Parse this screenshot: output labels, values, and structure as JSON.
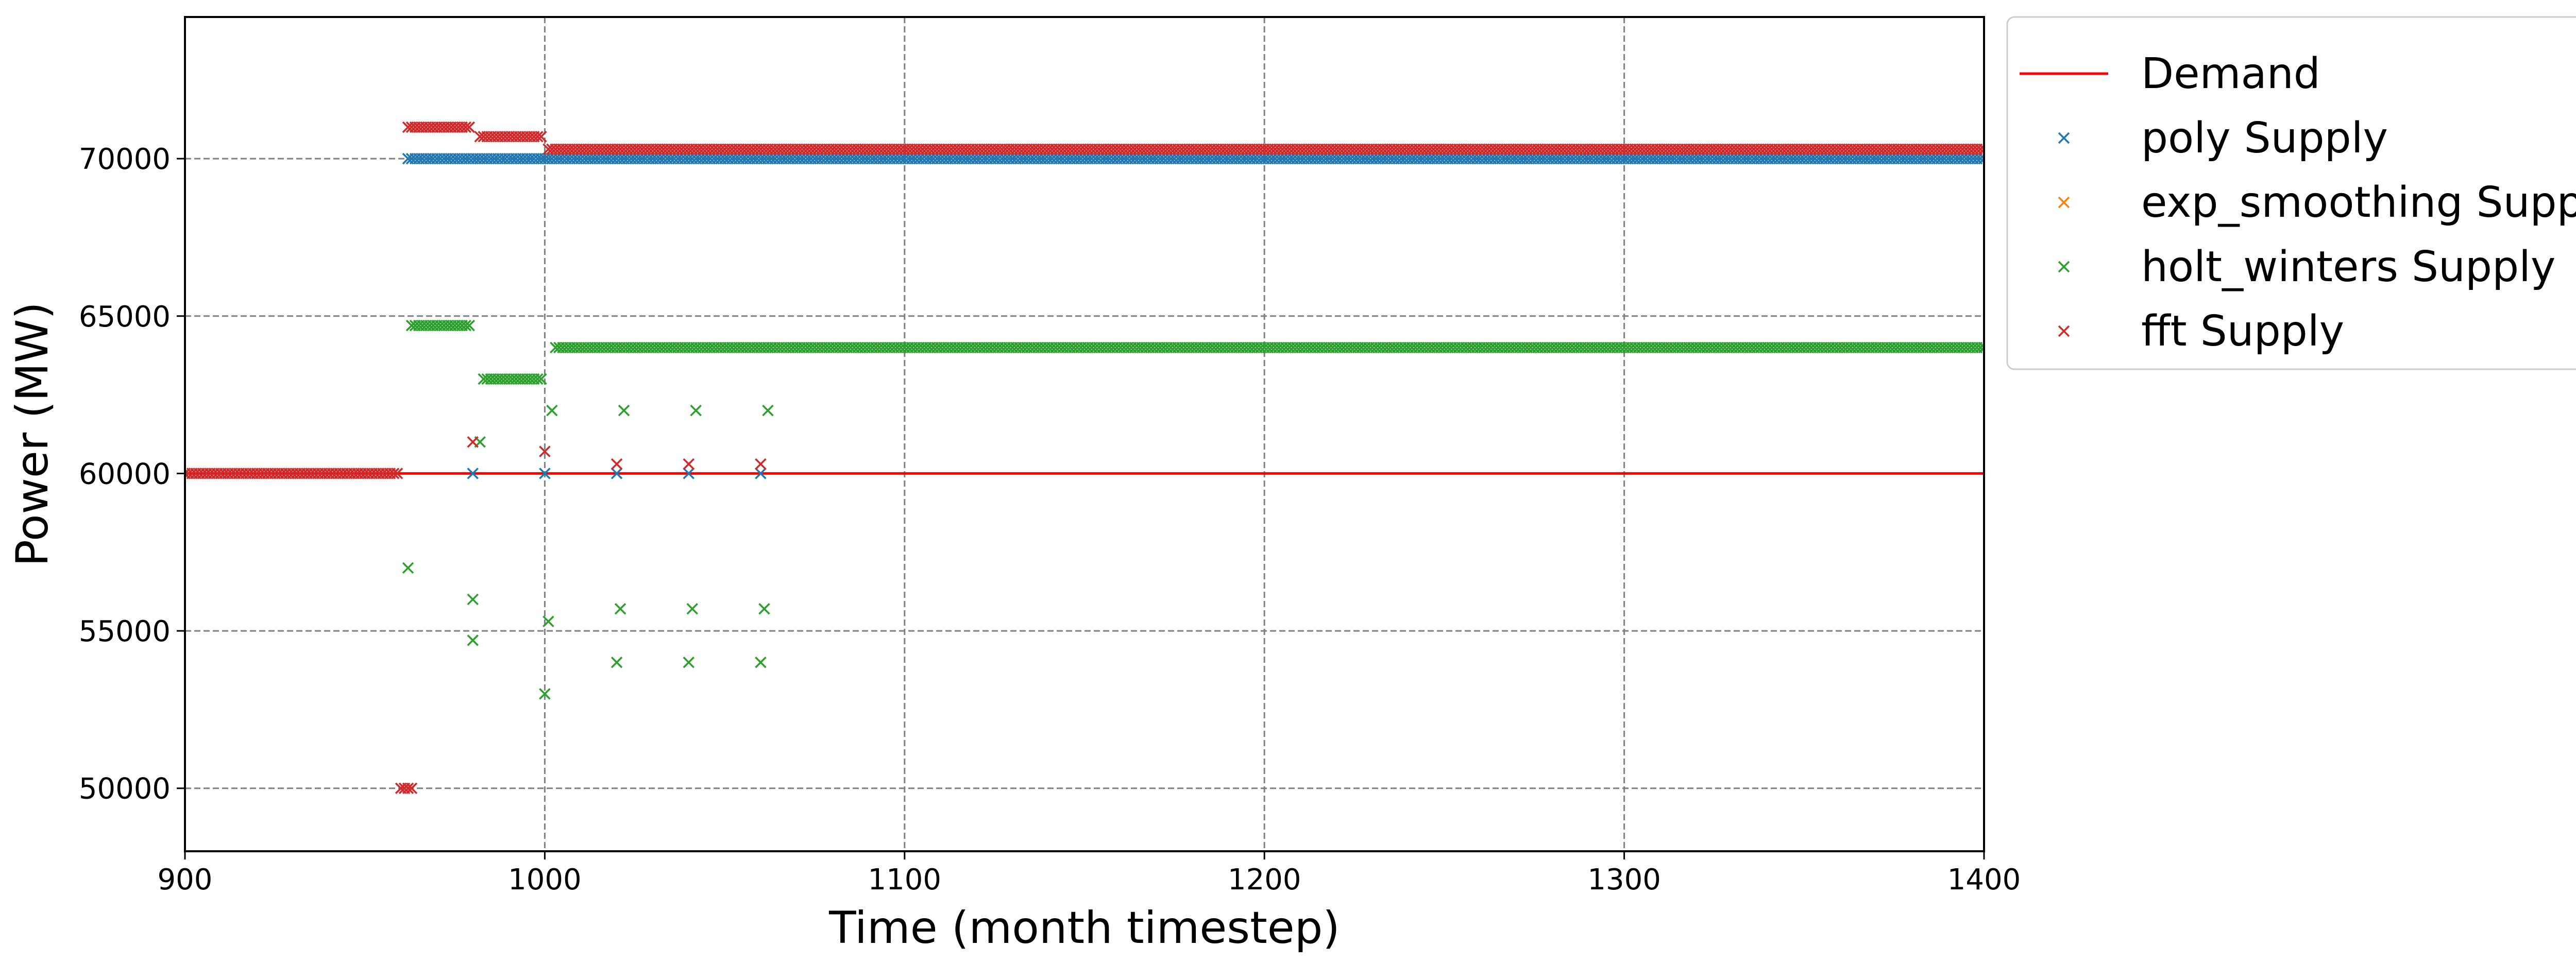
{
  "chart_data": {
    "type": "scatter",
    "title": "",
    "xlabel": "Time (month timestep)",
    "ylabel": "Power (MW)",
    "xlim": [
      900,
      1400
    ],
    "ylim": [
      48000,
      74500
    ],
    "xticks": [
      900,
      1000,
      1100,
      1200,
      1300,
      1400
    ],
    "yticks": [
      50000,
      55000,
      60000,
      65000,
      70000
    ],
    "grid": true,
    "legend_position": "outside-top-right",
    "series": [
      {
        "name": "Demand",
        "kind": "line",
        "color": "#ff0000",
        "x": [
          900,
          1400
        ],
        "y": [
          60000,
          60000
        ]
      },
      {
        "name": "poly Supply",
        "kind": "marker",
        "color": "#1f77b4",
        "points": [
          [
            980,
            60000
          ],
          [
            1000,
            60000
          ],
          [
            1020,
            60000
          ],
          [
            1040,
            60000
          ],
          [
            1060,
            60000
          ]
        ],
        "runs": [
          {
            "x_start": 962,
            "x_end": 1400,
            "y": 70000
          }
        ]
      },
      {
        "name": "exp_smoothing Supply",
        "kind": "marker",
        "color": "#ff7f0e",
        "points": [],
        "runs": []
      },
      {
        "name": "holt_winters Supply",
        "kind": "marker",
        "color": "#2ca02c",
        "points": [
          [
            962,
            57000
          ],
          [
            980,
            56000
          ],
          [
            980,
            54700
          ],
          [
            982,
            61000
          ],
          [
            1000,
            53000
          ],
          [
            1001,
            55300
          ],
          [
            1002,
            62000
          ],
          [
            1020,
            54000
          ],
          [
            1021,
            55700
          ],
          [
            1022,
            62000
          ],
          [
            1040,
            54000
          ],
          [
            1041,
            55700
          ],
          [
            1042,
            62000
          ],
          [
            1060,
            54000
          ],
          [
            1061,
            55700
          ],
          [
            1062,
            62000
          ]
        ],
        "runs": [
          {
            "x_start": 963,
            "x_end": 979,
            "y": 64700
          },
          {
            "x_start": 983,
            "x_end": 999,
            "y": 63000
          },
          {
            "x_start": 1003,
            "x_end": 1400,
            "y": 64000
          }
        ]
      },
      {
        "name": "fft Supply",
        "kind": "marker",
        "color": "#d62728",
        "points": [
          [
            960,
            50000
          ],
          [
            961,
            50000
          ],
          [
            962,
            50000
          ],
          [
            963,
            50000
          ],
          [
            980,
            61000
          ],
          [
            1000,
            60700
          ],
          [
            1020,
            60300
          ],
          [
            1040,
            60300
          ],
          [
            1060,
            60300
          ]
        ],
        "runs": [
          {
            "x_start": 900,
            "x_end": 959,
            "y": 60000
          },
          {
            "x_start": 962,
            "x_end": 979,
            "y": 71000
          },
          {
            "x_start": 982,
            "x_end": 999,
            "y": 70700
          },
          {
            "x_start": 1001,
            "x_end": 1400,
            "y": 70300
          }
        ]
      }
    ]
  }
}
